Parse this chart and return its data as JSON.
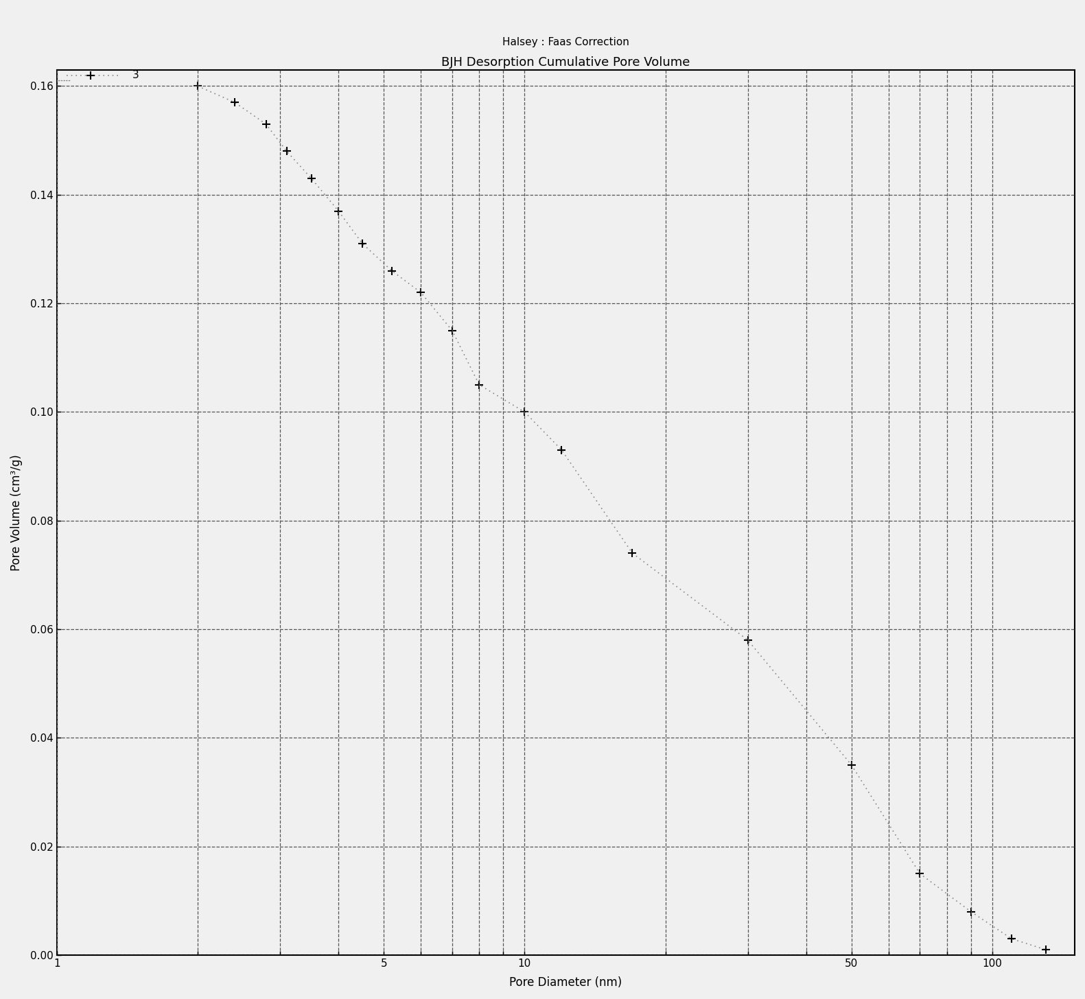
{
  "title": "BJH Desorption Cumulative Pore Volume",
  "subtitle": "Halsey : Faas Correction",
  "xlabel": "Pore Diameter (nm)",
  "ylabel": "Pore Volume (cm³/g)",
  "xlim": [
    1,
    150
  ],
  "ylim": [
    0.0,
    0.163
  ],
  "yticks": [
    0.0,
    0.02,
    0.04,
    0.06,
    0.08,
    0.1,
    0.12,
    0.14,
    0.16
  ],
  "x_data": [
    2.0,
    2.4,
    2.8,
    3.1,
    3.5,
    4.0,
    4.5,
    5.2,
    6.0,
    7.0,
    8.0,
    10.0,
    12.0,
    17.0,
    30.0,
    50.0,
    70.0,
    90.0,
    110.0,
    130.0
  ],
  "y_data": [
    0.16,
    0.157,
    0.153,
    0.148,
    0.143,
    0.137,
    0.131,
    0.126,
    0.122,
    0.115,
    0.105,
    0.1,
    0.093,
    0.074,
    0.058,
    0.035,
    0.015,
    0.008,
    0.003,
    0.001
  ],
  "line_color": "#888888",
  "marker_color": "#000000",
  "legend_label": "3",
  "background_color": "#f0f0f0",
  "grid_color": "#555555",
  "title_fontsize": 13,
  "subtitle_fontsize": 11,
  "label_fontsize": 12,
  "tick_fontsize": 11
}
